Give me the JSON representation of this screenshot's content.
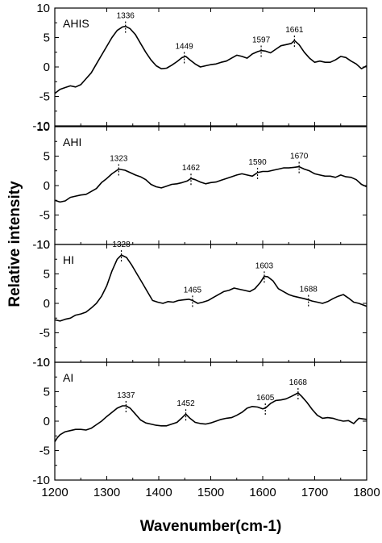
{
  "chart_data": {
    "type": "line",
    "xlabel": "Wavenumber(cm-1)",
    "ylabel": "Relative intensity",
    "xlim": [
      1200,
      1800
    ],
    "x_ticks": [
      1200,
      1300,
      1400,
      1500,
      1600,
      1700,
      1800
    ],
    "ylim": [
      -10,
      10
    ],
    "y_ticks": [
      10,
      5,
      0,
      -5,
      -10
    ],
    "panels": [
      {
        "label": "AHIS",
        "peaks": [
          1336,
          1449,
          1597,
          1661
        ],
        "x": [
          1200,
          1210,
          1220,
          1230,
          1240,
          1250,
          1260,
          1270,
          1280,
          1290,
          1300,
          1310,
          1320,
          1330,
          1336,
          1345,
          1355,
          1365,
          1375,
          1385,
          1395,
          1405,
          1415,
          1425,
          1435,
          1445,
          1452,
          1460,
          1470,
          1480,
          1490,
          1500,
          1510,
          1520,
          1530,
          1540,
          1550,
          1560,
          1570,
          1580,
          1590,
          1597,
          1605,
          1615,
          1625,
          1635,
          1645,
          1655,
          1661,
          1670,
          1680,
          1690,
          1700,
          1710,
          1720,
          1730,
          1740,
          1750,
          1760,
          1770,
          1780,
          1790,
          1800
        ],
        "y": [
          -4.5,
          -3.8,
          -3.5,
          -3.2,
          -3.4,
          -3.0,
          -2.0,
          -1.0,
          0.5,
          2.0,
          3.5,
          5.0,
          6.2,
          6.8,
          6.9,
          6.5,
          5.5,
          4.0,
          2.5,
          1.2,
          0.2,
          -0.3,
          -0.2,
          0.3,
          0.9,
          1.6,
          1.8,
          1.2,
          0.5,
          0.0,
          0.2,
          0.4,
          0.5,
          0.8,
          1.0,
          1.5,
          2.0,
          1.8,
          1.5,
          2.2,
          2.6,
          2.8,
          2.7,
          2.4,
          3.0,
          3.6,
          3.8,
          4.0,
          4.5,
          3.8,
          2.5,
          1.5,
          0.8,
          1.0,
          0.8,
          0.8,
          1.2,
          1.8,
          1.6,
          1.0,
          0.5,
          -0.3,
          0.2
        ]
      },
      {
        "label": "AHI",
        "peaks": [
          1323,
          1462,
          1590,
          1670
        ],
        "x": [
          1200,
          1210,
          1220,
          1230,
          1240,
          1250,
          1260,
          1270,
          1280,
          1290,
          1300,
          1310,
          1323,
          1335,
          1345,
          1355,
          1365,
          1375,
          1385,
          1395,
          1405,
          1415,
          1425,
          1435,
          1445,
          1455,
          1462,
          1470,
          1480,
          1490,
          1500,
          1510,
          1520,
          1530,
          1540,
          1550,
          1560,
          1570,
          1580,
          1590,
          1600,
          1610,
          1620,
          1630,
          1640,
          1650,
          1660,
          1670,
          1680,
          1690,
          1700,
          1710,
          1720,
          1730,
          1740,
          1750,
          1760,
          1770,
          1780,
          1790,
          1800
        ],
        "y": [
          -2.5,
          -2.8,
          -2.6,
          -2.0,
          -1.8,
          -1.6,
          -1.5,
          -1.0,
          -0.5,
          0.5,
          1.2,
          2.0,
          2.8,
          2.6,
          2.2,
          1.8,
          1.5,
          1.0,
          0.2,
          -0.2,
          -0.4,
          -0.1,
          0.2,
          0.3,
          0.5,
          0.8,
          1.2,
          1.0,
          0.6,
          0.3,
          0.5,
          0.6,
          0.9,
          1.2,
          1.5,
          1.8,
          2.0,
          1.8,
          1.6,
          2.2,
          2.4,
          2.4,
          2.6,
          2.8,
          3.0,
          3.0,
          3.1,
          3.2,
          2.8,
          2.5,
          2.0,
          1.8,
          1.6,
          1.6,
          1.4,
          1.8,
          1.5,
          1.4,
          1.0,
          0.2,
          -0.2
        ]
      },
      {
        "label": "HI",
        "peaks": [
          1328,
          1465,
          1603,
          1688
        ],
        "x": [
          1200,
          1210,
          1220,
          1230,
          1240,
          1250,
          1260,
          1270,
          1280,
          1290,
          1300,
          1310,
          1320,
          1328,
          1338,
          1348,
          1358,
          1368,
          1378,
          1388,
          1398,
          1408,
          1418,
          1428,
          1438,
          1448,
          1458,
          1465,
          1475,
          1485,
          1495,
          1505,
          1515,
          1525,
          1535,
          1545,
          1555,
          1565,
          1575,
          1585,
          1595,
          1603,
          1610,
          1620,
          1630,
          1640,
          1650,
          1660,
          1670,
          1680,
          1688,
          1695,
          1705,
          1715,
          1725,
          1735,
          1745,
          1755,
          1765,
          1775,
          1785,
          1800
        ],
        "y": [
          -2.8,
          -3.0,
          -2.7,
          -2.5,
          -2.0,
          -1.8,
          -1.5,
          -0.8,
          0.0,
          1.2,
          3.0,
          5.5,
          7.5,
          8.2,
          7.8,
          6.5,
          5.0,
          3.5,
          2.0,
          0.5,
          0.2,
          0.0,
          0.3,
          0.2,
          0.5,
          0.6,
          0.7,
          0.5,
          0.0,
          0.2,
          0.5,
          1.0,
          1.5,
          2.0,
          2.2,
          2.6,
          2.4,
          2.2,
          2.0,
          2.5,
          3.5,
          4.6,
          4.5,
          3.8,
          2.5,
          2.0,
          1.5,
          1.2,
          1.0,
          0.8,
          0.6,
          0.4,
          0.2,
          0.0,
          0.3,
          0.8,
          1.2,
          1.5,
          0.9,
          0.2,
          0.0,
          -0.5
        ]
      },
      {
        "label": "AI",
        "peaks": [
          1337,
          1452,
          1605,
          1668
        ],
        "x": [
          1200,
          1205,
          1210,
          1220,
          1230,
          1240,
          1250,
          1260,
          1270,
          1280,
          1290,
          1300,
          1310,
          1320,
          1330,
          1337,
          1345,
          1355,
          1365,
          1375,
          1385,
          1395,
          1405,
          1415,
          1425,
          1435,
          1445,
          1452,
          1460,
          1470,
          1480,
          1490,
          1500,
          1510,
          1520,
          1530,
          1540,
          1550,
          1560,
          1570,
          1580,
          1590,
          1600,
          1605,
          1615,
          1625,
          1635,
          1645,
          1655,
          1668,
          1675,
          1685,
          1695,
          1705,
          1715,
          1725,
          1735,
          1745,
          1755,
          1765,
          1775,
          1785,
          1800
        ],
        "y": [
          -3.5,
          -2.8,
          -2.3,
          -1.8,
          -1.6,
          -1.4,
          -1.4,
          -1.5,
          -1.2,
          -0.6,
          0.0,
          0.8,
          1.5,
          2.2,
          2.6,
          2.6,
          2.2,
          1.2,
          0.2,
          -0.3,
          -0.5,
          -0.7,
          -0.8,
          -0.8,
          -0.5,
          -0.2,
          0.6,
          1.2,
          0.5,
          -0.2,
          -0.4,
          -0.5,
          -0.3,
          0.0,
          0.3,
          0.5,
          0.6,
          1.0,
          1.5,
          2.2,
          2.5,
          2.4,
          2.1,
          2.2,
          3.0,
          3.5,
          3.6,
          3.8,
          4.2,
          4.8,
          4.2,
          3.2,
          2.0,
          1.0,
          0.5,
          0.6,
          0.5,
          0.2,
          0.0,
          0.1,
          -0.4,
          0.5,
          0.3
        ]
      }
    ]
  }
}
